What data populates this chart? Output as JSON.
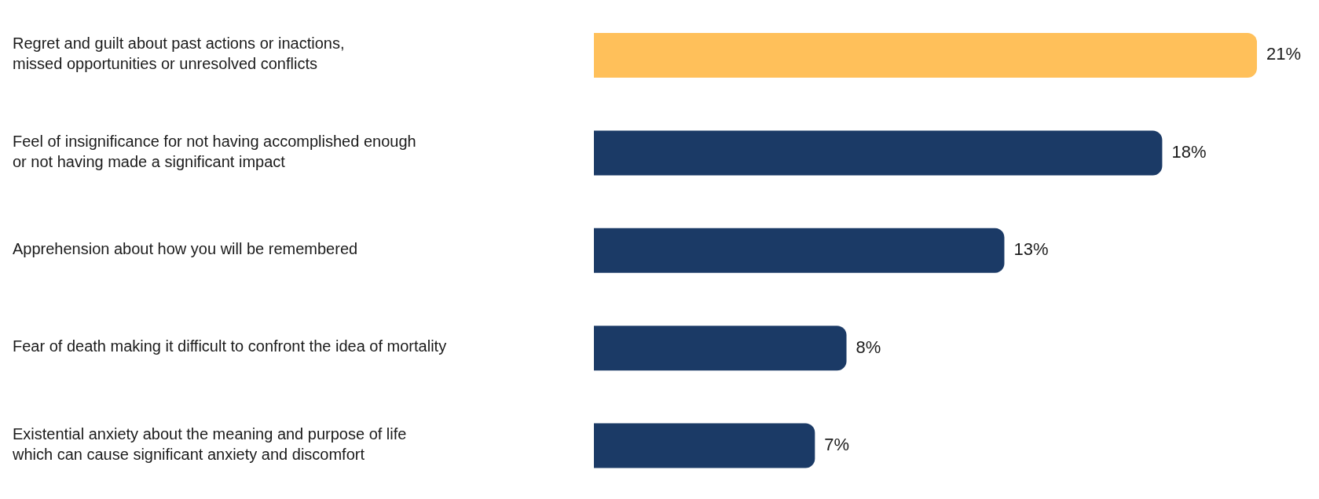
{
  "chart_data": {
    "type": "bar",
    "orientation": "horizontal",
    "categories": [
      "Regret and guilt about past actions or inactions,\nmissed opportunities or unresolved conflicts",
      "Feel of insignificance for not having accomplished enough\nor not having made a significant impact",
      "Apprehension about how you will be remembered",
      "Fear of death making it difficult to confront the idea of mortality",
      "Existential anxiety about the meaning and purpose of life\nwhich can cause significant anxiety and discomfort"
    ],
    "values": [
      21,
      18,
      13,
      8,
      7
    ],
    "colors": [
      "#ffc05a",
      "#1b3a66",
      "#1b3a66",
      "#1b3a66",
      "#1b3a66"
    ],
    "value_labels": [
      "21%",
      "18%",
      "13%",
      "8%",
      "7%"
    ],
    "grid": false,
    "legend": false,
    "tick_labels": "y"
  }
}
